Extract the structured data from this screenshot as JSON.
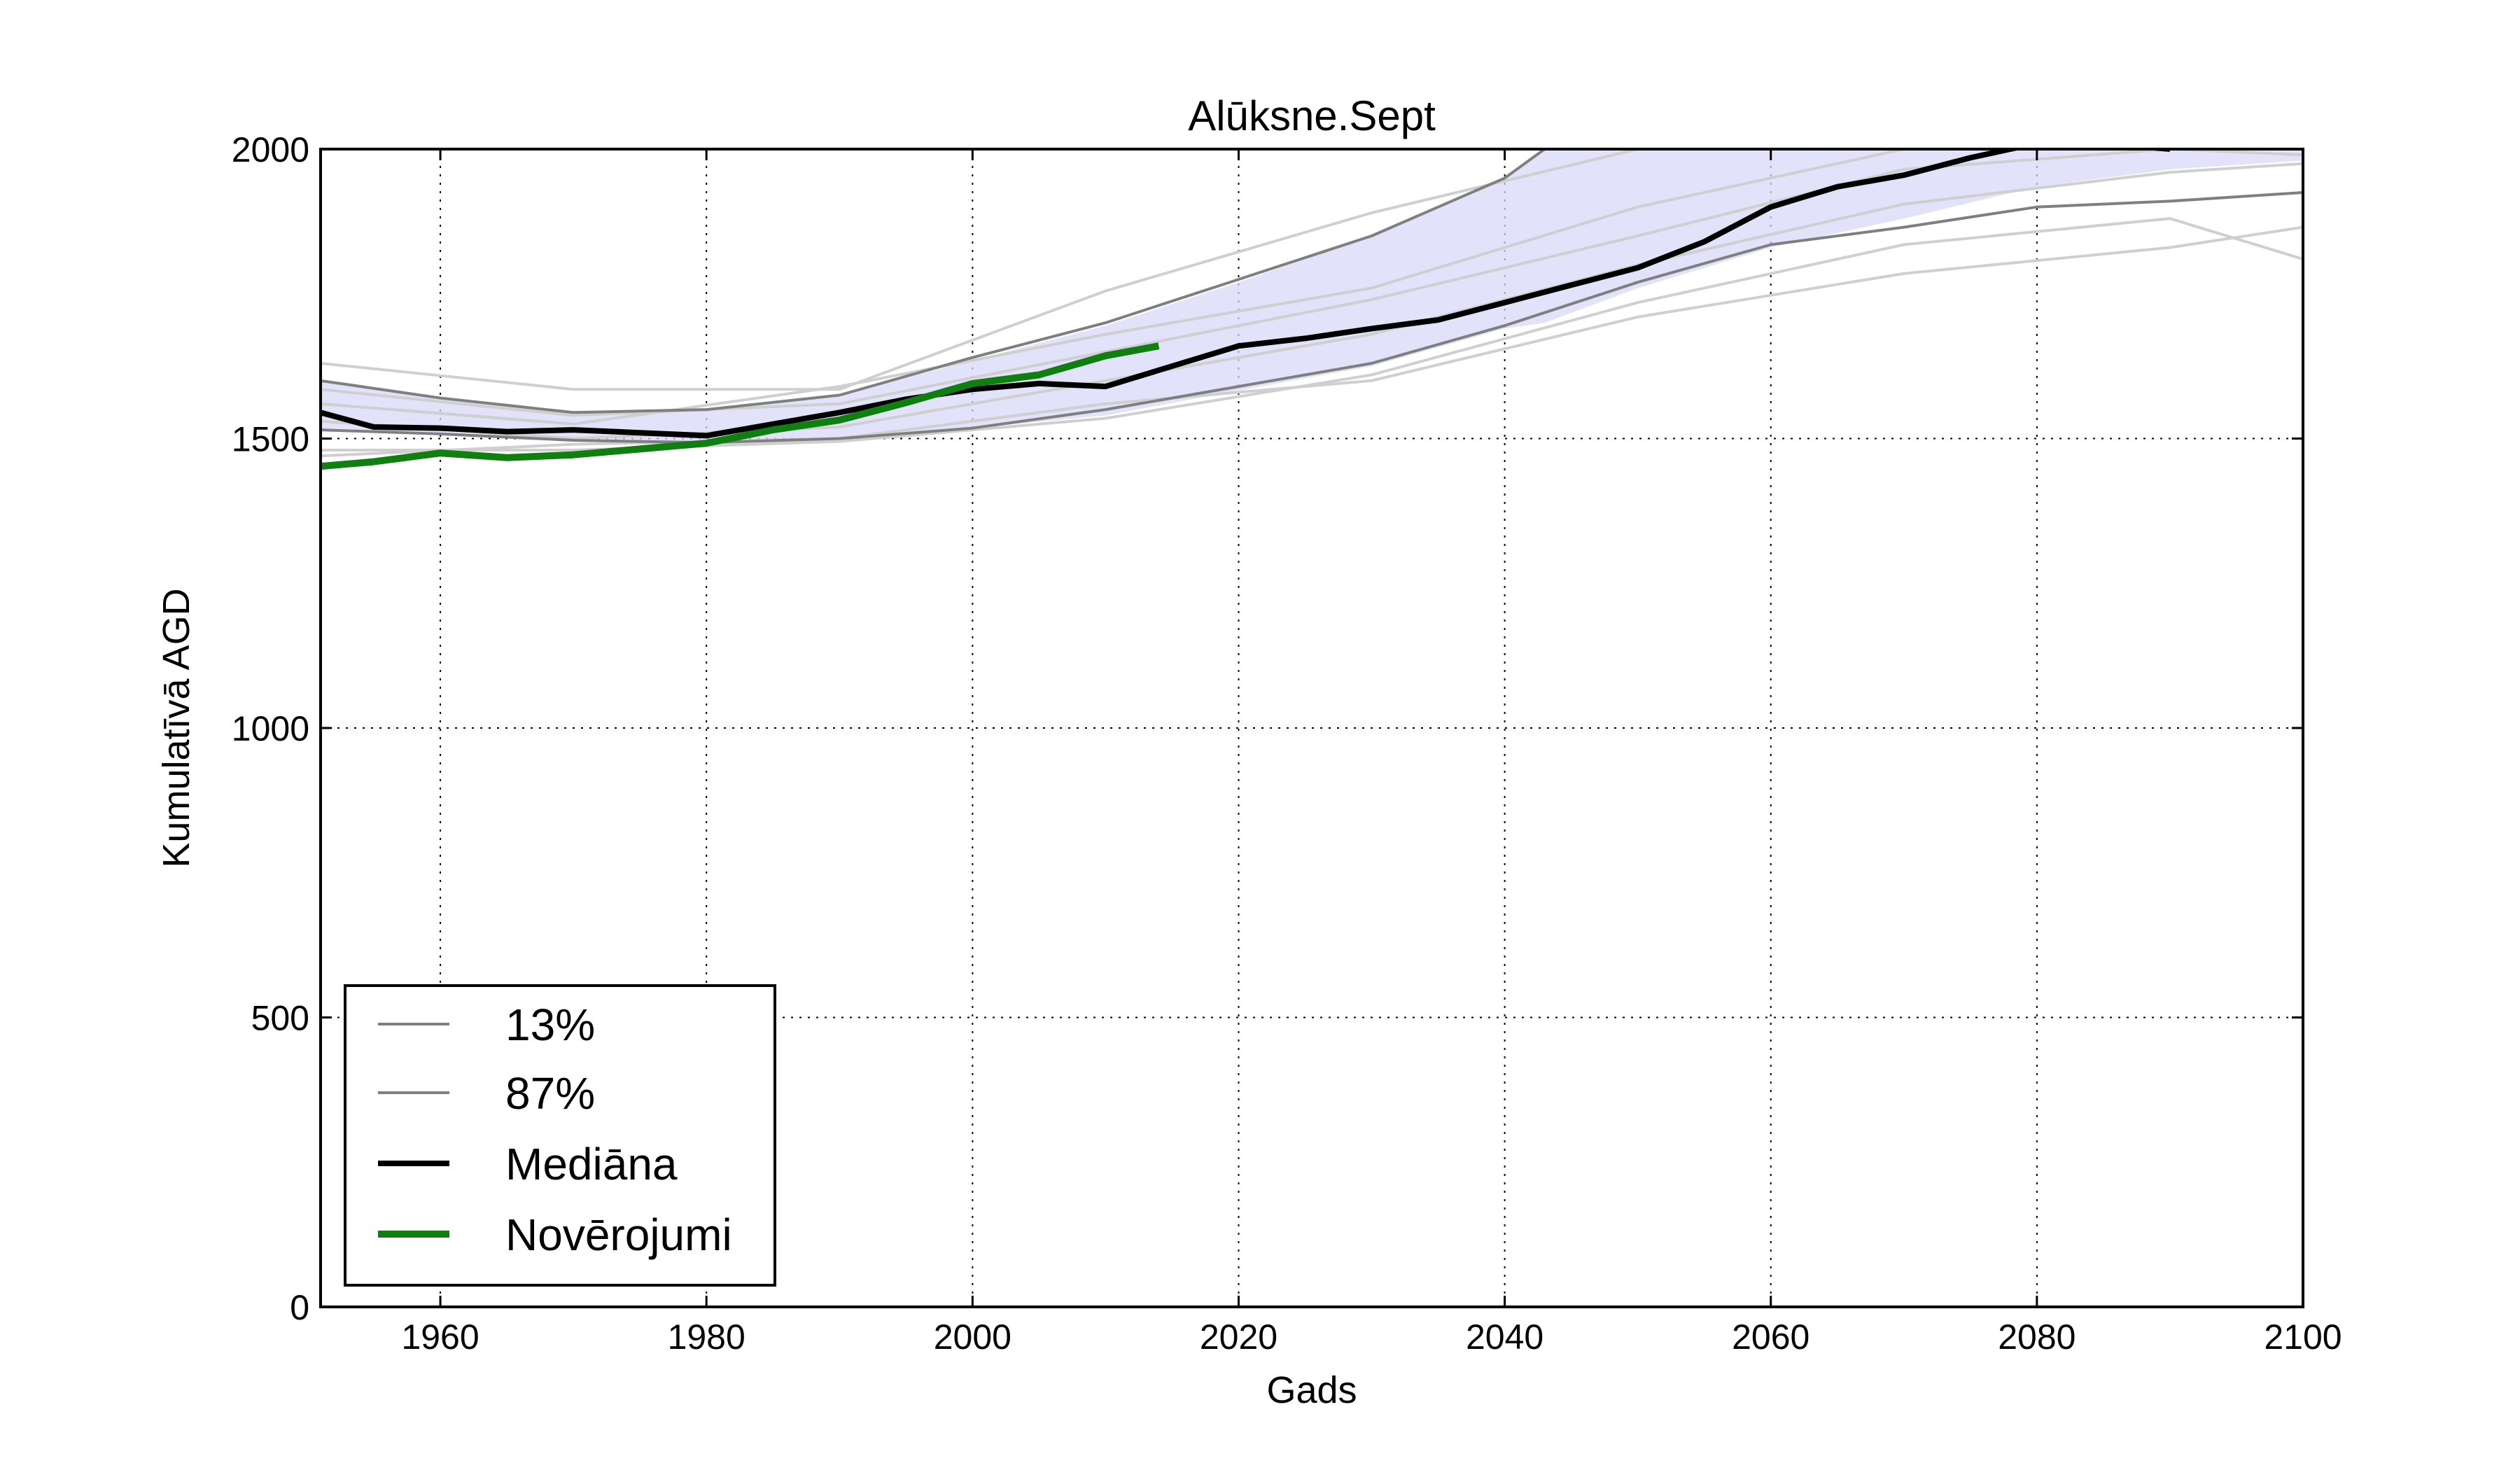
{
  "chart_data": {
    "type": "line",
    "title": "Alūksne.Sept",
    "xlabel": "Gads",
    "ylabel": "Kumulatīvā AGD",
    "xlim": [
      1951,
      2100
    ],
    "ylim": [
      0,
      2000
    ],
    "xticks": [
      "1960",
      "1980",
      "2000",
      "2020",
      "2040",
      "2060",
      "2080",
      "2100"
    ],
    "yticks": [
      "0",
      "500",
      "1000",
      "1500",
      "2000"
    ],
    "grid": true,
    "legend_position": "lower-left",
    "colors": {
      "band": "#d8d8f8",
      "percentile": "#7f7f7f",
      "ensemble": "#cfcfcf",
      "median": "#000000",
      "observed": "#0f7f0f"
    },
    "band": {
      "x": [
        1951,
        1960,
        1970,
        1980,
        1990,
        2000,
        2010,
        2020,
        2030,
        2040,
        2043,
        2050,
        2060,
        2070,
        2080,
        2090,
        2100
      ],
      "lower": [
        1515,
        1508,
        1497,
        1493,
        1500,
        1518,
        1540,
        1583,
        1625,
        1690,
        1700,
        1760,
        1830,
        1880,
        1935,
        1965,
        1980
      ],
      "upper": [
        1600,
        1570,
        1545,
        1550,
        1575,
        1635,
        1695,
        1770,
        1850,
        1950,
        2000,
        2000,
        2000,
        2000,
        2000,
        2000,
        2000
      ]
    },
    "series": [
      {
        "name": "13%",
        "x": [
          1951,
          1960,
          1970,
          1980,
          1990,
          2000,
          2010,
          2020,
          2030,
          2040,
          2050,
          2060,
          2070,
          2080,
          2090,
          2100
        ],
        "values": [
          1515,
          1508,
          1497,
          1493,
          1500,
          1518,
          1550,
          1590,
          1630,
          1695,
          1770,
          1835,
          1865,
          1900,
          1910,
          1925
        ]
      },
      {
        "name": "87%",
        "x": [
          1951,
          1960,
          1970,
          1980,
          1990,
          2000,
          2010,
          2020,
          2030,
          2040,
          2043,
          2050,
          2060,
          2070,
          2080,
          2090,
          2100
        ],
        "values": [
          1600,
          1570,
          1545,
          1550,
          1575,
          1640,
          1700,
          1775,
          1850,
          1950,
          2000,
          2000,
          2000,
          2000,
          2000,
          2000,
          2000
        ]
      },
      {
        "name": "Mediāna",
        "x": [
          1951,
          1955,
          1960,
          1965,
          1970,
          1975,
          1980,
          1985,
          1990,
          1995,
          2000,
          2005,
          2010,
          2015,
          2020,
          2025,
          2030,
          2035,
          2040,
          2045,
          2050,
          2055,
          2060,
          2065,
          2070,
          2075,
          2080,
          2085,
          2090
        ],
        "values": [
          1545,
          1520,
          1518,
          1512,
          1515,
          1510,
          1505,
          1525,
          1545,
          1568,
          1585,
          1595,
          1590,
          1625,
          1660,
          1673,
          1690,
          1705,
          1735,
          1765,
          1795,
          1840,
          1900,
          1935,
          1955,
          1985,
          2010,
          2010,
          2000
        ]
      },
      {
        "name": "Novērojumi",
        "x": [
          1951,
          1955,
          1960,
          1965,
          1970,
          1975,
          1980,
          1985,
          1990,
          1995,
          2000,
          2005,
          2010,
          2014
        ],
        "values": [
          1452,
          1460,
          1475,
          1467,
          1472,
          1482,
          1492,
          1515,
          1532,
          1562,
          1595,
          1610,
          1643,
          1660
        ]
      }
    ],
    "ensemble_members": [
      {
        "x": [
          1951,
          1970,
          1990,
          2010,
          2030,
          2050,
          2070,
          2090,
          2100
        ],
        "values": [
          1630,
          1585,
          1585,
          1755,
          1890,
          2000,
          2000,
          2000,
          2000
        ]
      },
      {
        "x": [
          1951,
          1970,
          1990,
          2010,
          2030,
          2050,
          2070,
          2090,
          2100
        ],
        "values": [
          1560,
          1525,
          1590,
          1680,
          1760,
          1900,
          2000,
          2000,
          2000
        ]
      },
      {
        "x": [
          1951,
          1970,
          1990,
          2010,
          2030,
          2050,
          2070,
          2090,
          2100
        ],
        "values": [
          1480,
          1480,
          1495,
          1535,
          1610,
          1735,
          1835,
          1880,
          1810
        ]
      },
      {
        "x": [
          1951,
          1970,
          1990,
          2010,
          2030,
          2050,
          2070,
          2090,
          2100
        ],
        "values": [
          1470,
          1490,
          1500,
          1560,
          1600,
          1710,
          1785,
          1830,
          1865
        ]
      },
      {
        "x": [
          1951,
          1970,
          1990,
          2010,
          2030,
          2050,
          2070,
          2090,
          2100
        ],
        "values": [
          1530,
          1500,
          1520,
          1600,
          1680,
          1800,
          1905,
          1960,
          1975
        ]
      },
      {
        "x": [
          1951,
          1970,
          1990,
          2010,
          2030,
          2050,
          2070,
          2090,
          2100
        ],
        "values": [
          1585,
          1540,
          1560,
          1650,
          1740,
          1850,
          1965,
          2000,
          1990
        ]
      }
    ]
  }
}
